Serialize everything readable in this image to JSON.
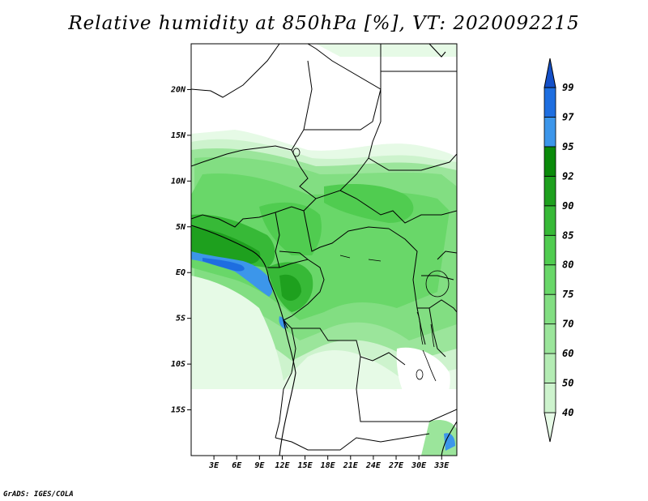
{
  "title": "Relative humidity at 850hPa [%], VT: 2020092215",
  "footer": "GrADS: IGES/COLA",
  "map": {
    "lon_range": [
      0,
      35
    ],
    "lat_range": [
      -20,
      25
    ],
    "y_ticks": [
      {
        "lat": 20,
        "label": "20N"
      },
      {
        "lat": 15,
        "label": "15N"
      },
      {
        "lat": 10,
        "label": "10N"
      },
      {
        "lat": 5,
        "label": "5N"
      },
      {
        "lat": 0,
        "label": "EQ"
      },
      {
        "lat": -5,
        "label": "5S"
      },
      {
        "lat": -10,
        "label": "10S"
      },
      {
        "lat": -15,
        "label": "15S"
      }
    ],
    "x_ticks": [
      {
        "lon": 3,
        "label": "3E"
      },
      {
        "lon": 6,
        "label": "6E"
      },
      {
        "lon": 9,
        "label": "9E"
      },
      {
        "lon": 12,
        "label": "12E"
      },
      {
        "lon": 15,
        "label": "15E"
      },
      {
        "lon": 18,
        "label": "18E"
      },
      {
        "lon": 21,
        "label": "21E"
      },
      {
        "lon": 24,
        "label": "24E"
      },
      {
        "lon": 27,
        "label": "27E"
      },
      {
        "lon": 30,
        "label": "30E"
      },
      {
        "lon": 33,
        "label": "33E"
      }
    ]
  },
  "colorbar": {
    "levels": [
      "40",
      "50",
      "60",
      "70",
      "75",
      "80",
      "85",
      "90",
      "92",
      "95",
      "97",
      "99"
    ],
    "colors": [
      "#e6fae6",
      "#cdf3cd",
      "#b4ecb4",
      "#9be59b",
      "#82de82",
      "#69d769",
      "#50cc50",
      "#37b937",
      "#1ea01e",
      "#0a8a0a",
      "#3c96ea",
      "#1e6ee0",
      "#1450c8"
    ]
  }
}
